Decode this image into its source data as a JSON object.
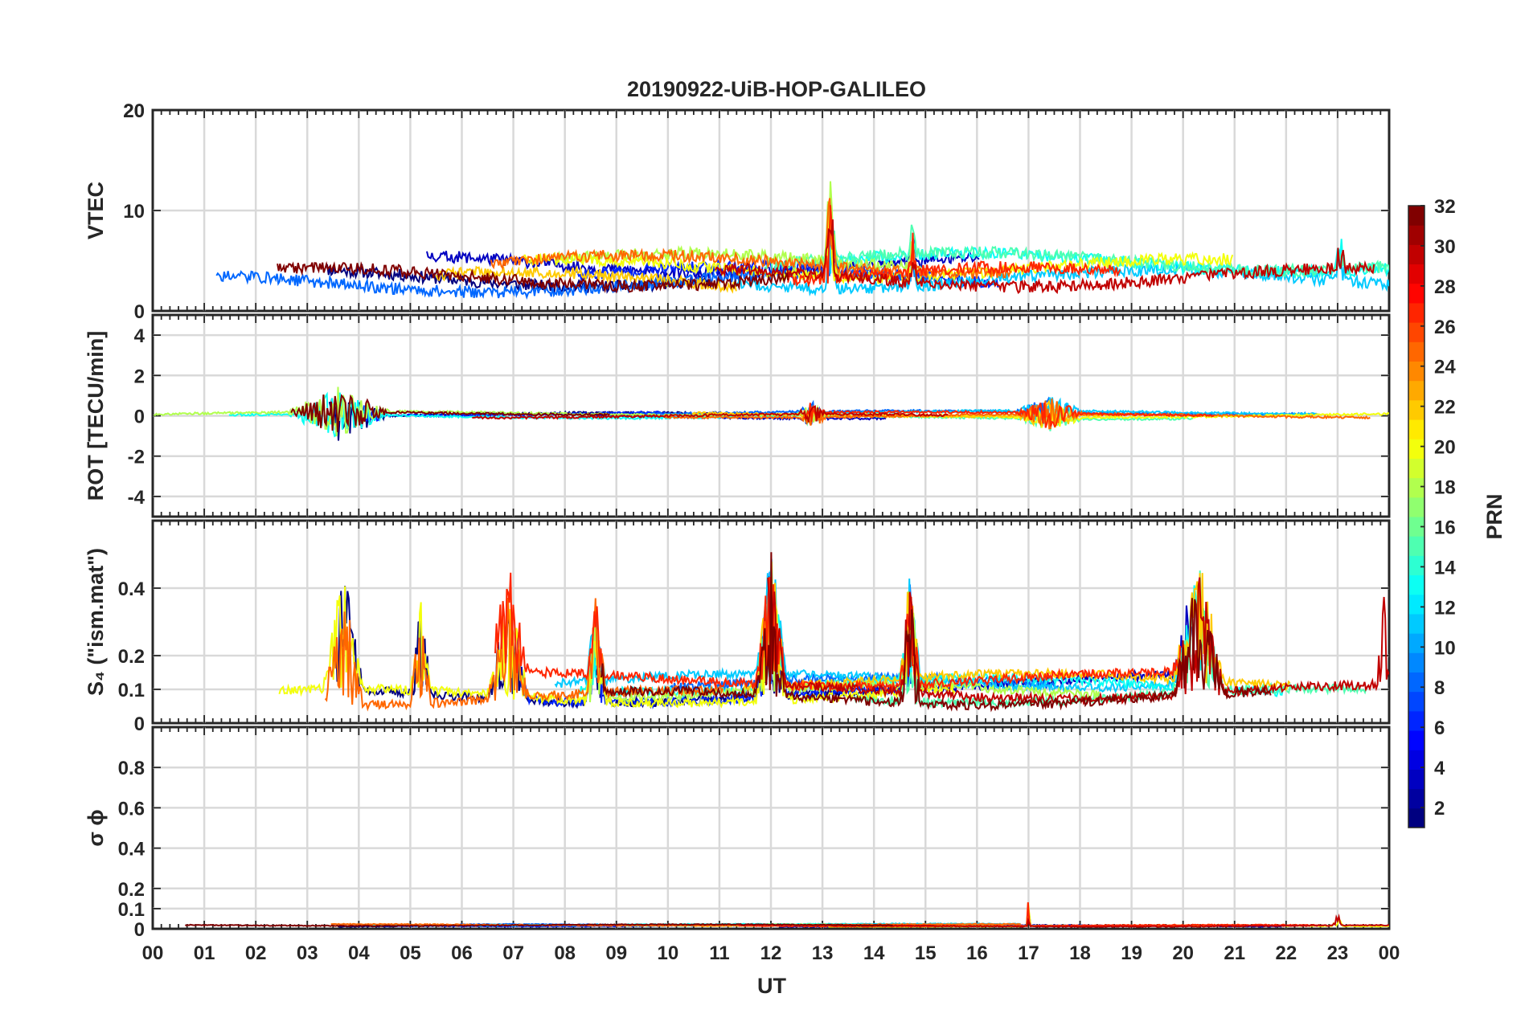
{
  "chart_data": {
    "type": "line",
    "title": "20190922-UiB-HOP-GALILEO",
    "xlabel": "UT",
    "x_tick_labels": [
      "00",
      "01",
      "02",
      "03",
      "04",
      "05",
      "06",
      "07",
      "08",
      "09",
      "10",
      "11",
      "12",
      "13",
      "14",
      "15",
      "16",
      "17",
      "18",
      "19",
      "20",
      "21",
      "22",
      "23",
      "00"
    ],
    "xlim": [
      0,
      24
    ],
    "panels": [
      {
        "id": "vtec",
        "ylabel": "VTEC",
        "ylim": [
          0,
          20
        ],
        "yticks": [
          0,
          10,
          20
        ],
        "ytick_labels": [
          "0",
          "10",
          "20"
        ],
        "baseline": 3.2,
        "spread": 2.6,
        "seed": 11,
        "bursts": [
          [
            13.15,
            0.12,
            9
          ],
          [
            14.75,
            0.08,
            4
          ],
          [
            23.05,
            0.1,
            5
          ]
        ]
      },
      {
        "id": "rot",
        "ylabel": "ROT [TECU/min]",
        "ylim": [
          -5,
          5
        ],
        "yticks": [
          -4,
          -2,
          0,
          2,
          4
        ],
        "ytick_labels": [
          "-4",
          "-2",
          "0",
          "2",
          "4"
        ],
        "baseline": 0.0,
        "spread": 0.25,
        "seed": 23,
        "bursts": [
          [
            3.6,
            1.0,
            1.3
          ],
          [
            17.4,
            0.7,
            0.8
          ],
          [
            12.8,
            0.3,
            0.6
          ]
        ]
      },
      {
        "id": "s4",
        "ylabel": "S₄ (\"ism.mat\")",
        "ylim": [
          0,
          0.6
        ],
        "yticks": [
          0,
          0.1,
          0.2,
          0.4
        ],
        "ytick_labels": [
          "0",
          "0.1",
          "0.2",
          "0.4"
        ],
        "baseline": 0.09,
        "spread": 0.06,
        "seed": 37,
        "bursts": [
          [
            3.7,
            0.4,
            0.38
          ],
          [
            5.2,
            0.2,
            0.3
          ],
          [
            6.9,
            0.4,
            0.35
          ],
          [
            8.6,
            0.2,
            0.3
          ],
          [
            12.0,
            0.3,
            0.42
          ],
          [
            14.7,
            0.2,
            0.35
          ],
          [
            20.3,
            0.5,
            0.4
          ],
          [
            23.9,
            0.15,
            0.3
          ]
        ]
      },
      {
        "id": "sigma",
        "ylabel": "σ ϕ",
        "ylim": [
          0,
          1
        ],
        "yticks": [
          0,
          0.1,
          0.2,
          0.4,
          0.6,
          0.8
        ],
        "ytick_labels": [
          "0",
          "0.1",
          "0.2",
          "0.4",
          "0.6",
          "0.8"
        ],
        "baseline": 0.015,
        "spread": 0.01,
        "seed": 53,
        "bursts": [
          [
            17.0,
            0.03,
            0.18
          ],
          [
            23.0,
            0.1,
            0.06
          ]
        ]
      }
    ],
    "colorbar": {
      "label": "PRN",
      "range": [
        1,
        32
      ],
      "ticks": [
        2,
        4,
        6,
        8,
        10,
        12,
        14,
        16,
        18,
        20,
        22,
        24,
        26,
        28,
        30,
        32
      ]
    },
    "grid": true,
    "series_count": 14
  }
}
